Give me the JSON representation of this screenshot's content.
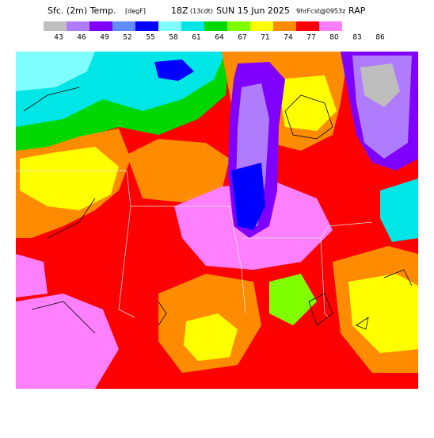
{
  "header": {
    "field": "Sfc. (2m) Temp.",
    "unit": "[degF]",
    "time": "18Z",
    "local": "(13cdt)",
    "date": "SUN 15 Jun 2025",
    "fcst": "9hrFcst@0953z",
    "model": "RAP"
  },
  "legend": {
    "colors": [
      "#bebebe",
      "#b07cff",
      "#8000ff",
      "#5f8cff",
      "#0000ff",
      "#80ffff",
      "#00e6e6",
      "#00d700",
      "#80ff00",
      "#ffff00",
      "#ff8c00",
      "#ff0000",
      "#ff80ff",
      "#ffffff"
    ],
    "labels": [
      43,
      46,
      49,
      52,
      55,
      58,
      61,
      64,
      67,
      71,
      74,
      77,
      80,
      83,
      86
    ]
  }
}
